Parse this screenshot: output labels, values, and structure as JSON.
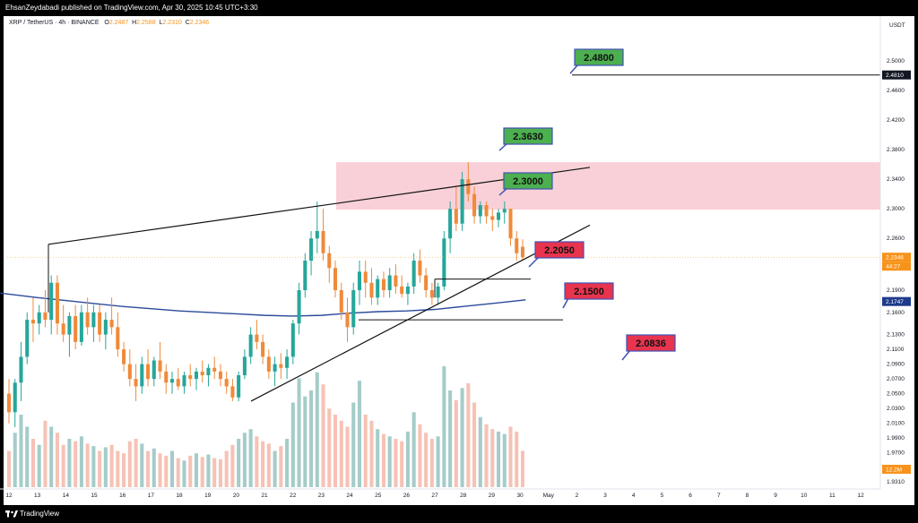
{
  "header": {
    "publisher_line": "EhsanZeydabadi published on TradingView.com, Apr 30, 2025 10:45 UTC+3:30"
  },
  "legend": {
    "symbol": "XRP / TetherUS · 4h · BINANCE",
    "open_label": "O",
    "open": "2.2487",
    "high_label": "H",
    "high": "2.2588",
    "low_label": "L",
    "low": "2.2310",
    "close_label": "C",
    "close": "2.2346"
  },
  "footer": {
    "brand": "TradingView"
  },
  "colors": {
    "up": "#26a69a",
    "down": "#ef8a3a",
    "volume_up": "#8fbfbc",
    "volume_down": "#f4b3a2",
    "ma": "#2a4a9a",
    "zone": "#f8c8d0",
    "callout_green": "#4caf50",
    "callout_red": "#e8344e",
    "callout_border": "#3f51b5"
  },
  "chart_data": {
    "type": "candlestick",
    "title": "",
    "xlabel": "",
    "ylabel": "",
    "unit": "USDT",
    "ylim": [
      1.931,
      2.53
    ],
    "y_ticks": [
      "2.5000",
      "2.4600",
      "2.4200",
      "2.3800",
      "2.3400",
      "2.3000",
      "2.2600",
      "2.1900",
      "2.1600",
      "2.1300",
      "2.1100",
      "2.0900",
      "2.0700",
      "2.0500",
      "2.0300",
      "2.0100",
      "1.9900",
      "1.9700",
      "1.9500",
      "1.9310"
    ],
    "x_ticks": [
      "12",
      "13",
      "14",
      "15",
      "16",
      "17",
      "18",
      "19",
      "20",
      "21",
      "22",
      "23",
      "24",
      "25",
      "26",
      "27",
      "28",
      "29",
      "30",
      "May",
      "2",
      "3",
      "4",
      "5",
      "6",
      "7",
      "8",
      "9",
      "10",
      "11",
      "12"
    ],
    "price_tags": {
      "level_line": "2.4810",
      "last_price": "2.2346",
      "countdown": "44:27",
      "ma_value": "2.1747",
      "volume": "12.2M"
    },
    "callouts": [
      {
        "label": "2.4800",
        "color": "green"
      },
      {
        "label": "2.3630",
        "color": "green"
      },
      {
        "label": "2.3000",
        "color": "green"
      },
      {
        "label": "2.2050",
        "color": "red"
      },
      {
        "label": "2.1500",
        "color": "red"
      },
      {
        "label": "2.0836",
        "color": "red"
      }
    ],
    "resistance_zone": [
      2.299,
      2.363
    ],
    "horizontal_lines": [
      2.481,
      2.205,
      2.15
    ],
    "trendlines": [
      {
        "name": "upper",
        "from": [
          "13",
          2.252
        ],
        "to": [
          "May 2",
          2.356
        ]
      },
      {
        "name": "lower",
        "from": [
          "20",
          2.04
        ],
        "to": [
          "May 2",
          2.278
        ]
      }
    ],
    "ma_series": [
      {
        "x": 11.7,
        "v": 2.186
      },
      {
        "x": 13,
        "v": 2.18
      },
      {
        "x": 14,
        "v": 2.176
      },
      {
        "x": 15,
        "v": 2.172
      },
      {
        "x": 16,
        "v": 2.168
      },
      {
        "x": 17,
        "v": 2.165
      },
      {
        "x": 18,
        "v": 2.162
      },
      {
        "x": 19,
        "v": 2.16
      },
      {
        "x": 20,
        "v": 2.158
      },
      {
        "x": 21,
        "v": 2.156
      },
      {
        "x": 22,
        "v": 2.155
      },
      {
        "x": 23,
        "v": 2.156
      },
      {
        "x": 24,
        "v": 2.159
      },
      {
        "x": 25,
        "v": 2.161
      },
      {
        "x": 26,
        "v": 2.162
      },
      {
        "x": 27,
        "v": 2.164
      },
      {
        "x": 28,
        "v": 2.168
      },
      {
        "x": 29,
        "v": 2.172
      },
      {
        "x": 30.2,
        "v": 2.177
      }
    ],
    "candles": [
      {
        "o": 2.05,
        "h": 2.07,
        "l": 2.01,
        "c": 2.025
      },
      {
        "o": 2.025,
        "h": 2.07,
        "l": 2.005,
        "c": 2.065
      },
      {
        "o": 2.065,
        "h": 2.12,
        "l": 2.04,
        "c": 2.1
      },
      {
        "o": 2.1,
        "h": 2.16,
        "l": 2.09,
        "c": 2.15
      },
      {
        "o": 2.15,
        "h": 2.18,
        "l": 2.12,
        "c": 2.145
      },
      {
        "o": 2.145,
        "h": 2.17,
        "l": 2.13,
        "c": 2.16
      },
      {
        "o": 2.16,
        "h": 2.19,
        "l": 2.14,
        "c": 2.15
      },
      {
        "o": 2.15,
        "h": 2.21,
        "l": 2.13,
        "c": 2.2
      },
      {
        "o": 2.2,
        "h": 2.21,
        "l": 2.13,
        "c": 2.145
      },
      {
        "o": 2.145,
        "h": 2.17,
        "l": 2.12,
        "c": 2.13
      },
      {
        "o": 2.13,
        "h": 2.16,
        "l": 2.1,
        "c": 2.155
      },
      {
        "o": 2.155,
        "h": 2.17,
        "l": 2.11,
        "c": 2.12
      },
      {
        "o": 2.12,
        "h": 2.17,
        "l": 2.115,
        "c": 2.16
      },
      {
        "o": 2.16,
        "h": 2.18,
        "l": 2.13,
        "c": 2.14
      },
      {
        "o": 2.14,
        "h": 2.17,
        "l": 2.12,
        "c": 2.16
      },
      {
        "o": 2.16,
        "h": 2.17,
        "l": 2.12,
        "c": 2.13
      },
      {
        "o": 2.13,
        "h": 2.16,
        "l": 2.11,
        "c": 2.15
      },
      {
        "o": 2.15,
        "h": 2.18,
        "l": 2.13,
        "c": 2.14
      },
      {
        "o": 2.14,
        "h": 2.16,
        "l": 2.1,
        "c": 2.11
      },
      {
        "o": 2.11,
        "h": 2.12,
        "l": 2.08,
        "c": 2.09
      },
      {
        "o": 2.09,
        "h": 2.11,
        "l": 2.06,
        "c": 2.07
      },
      {
        "o": 2.07,
        "h": 2.09,
        "l": 2.04,
        "c": 2.06
      },
      {
        "o": 2.06,
        "h": 2.1,
        "l": 2.05,
        "c": 2.09
      },
      {
        "o": 2.09,
        "h": 2.11,
        "l": 2.06,
        "c": 2.07
      },
      {
        "o": 2.07,
        "h": 2.1,
        "l": 2.06,
        "c": 2.095
      },
      {
        "o": 2.095,
        "h": 2.12,
        "l": 2.07,
        "c": 2.08
      },
      {
        "o": 2.08,
        "h": 2.09,
        "l": 2.05,
        "c": 2.065
      },
      {
        "o": 2.065,
        "h": 2.08,
        "l": 2.05,
        "c": 2.07
      },
      {
        "o": 2.07,
        "h": 2.085,
        "l": 2.055,
        "c": 2.06
      },
      {
        "o": 2.06,
        "h": 2.08,
        "l": 2.05,
        "c": 2.075
      },
      {
        "o": 2.075,
        "h": 2.09,
        "l": 2.06,
        "c": 2.07
      },
      {
        "o": 2.07,
        "h": 2.085,
        "l": 2.055,
        "c": 2.08
      },
      {
        "o": 2.08,
        "h": 2.095,
        "l": 2.065,
        "c": 2.075
      },
      {
        "o": 2.075,
        "h": 2.09,
        "l": 2.06,
        "c": 2.085
      },
      {
        "o": 2.085,
        "h": 2.1,
        "l": 2.07,
        "c": 2.08
      },
      {
        "o": 2.08,
        "h": 2.09,
        "l": 2.06,
        "c": 2.07
      },
      {
        "o": 2.07,
        "h": 2.08,
        "l": 2.05,
        "c": 2.06
      },
      {
        "o": 2.06,
        "h": 2.07,
        "l": 2.04,
        "c": 2.045
      },
      {
        "o": 2.045,
        "h": 2.08,
        "l": 2.04,
        "c": 2.075
      },
      {
        "o": 2.075,
        "h": 2.11,
        "l": 2.07,
        "c": 2.1
      },
      {
        "o": 2.1,
        "h": 2.14,
        "l": 2.09,
        "c": 2.13
      },
      {
        "o": 2.13,
        "h": 2.15,
        "l": 2.11,
        "c": 2.12
      },
      {
        "o": 2.12,
        "h": 2.13,
        "l": 2.09,
        "c": 2.1
      },
      {
        "o": 2.1,
        "h": 2.11,
        "l": 2.07,
        "c": 2.08
      },
      {
        "o": 2.08,
        "h": 2.1,
        "l": 2.06,
        "c": 2.09
      },
      {
        "o": 2.09,
        "h": 2.105,
        "l": 2.07,
        "c": 2.085
      },
      {
        "o": 2.085,
        "h": 2.11,
        "l": 2.07,
        "c": 2.1
      },
      {
        "o": 2.1,
        "h": 2.15,
        "l": 2.09,
        "c": 2.145
      },
      {
        "o": 2.145,
        "h": 2.2,
        "l": 2.13,
        "c": 2.19
      },
      {
        "o": 2.19,
        "h": 2.24,
        "l": 2.18,
        "c": 2.23
      },
      {
        "o": 2.23,
        "h": 2.27,
        "l": 2.21,
        "c": 2.26
      },
      {
        "o": 2.26,
        "h": 2.31,
        "l": 2.24,
        "c": 2.27
      },
      {
        "o": 2.27,
        "h": 2.3,
        "l": 2.23,
        "c": 2.24
      },
      {
        "o": 2.24,
        "h": 2.25,
        "l": 2.2,
        "c": 2.22
      },
      {
        "o": 2.22,
        "h": 2.23,
        "l": 2.18,
        "c": 2.19
      },
      {
        "o": 2.19,
        "h": 2.2,
        "l": 2.15,
        "c": 2.16
      },
      {
        "o": 2.16,
        "h": 2.18,
        "l": 2.12,
        "c": 2.14
      },
      {
        "o": 2.14,
        "h": 2.2,
        "l": 2.13,
        "c": 2.19
      },
      {
        "o": 2.19,
        "h": 2.23,
        "l": 2.17,
        "c": 2.215
      },
      {
        "o": 2.215,
        "h": 2.23,
        "l": 2.18,
        "c": 2.2
      },
      {
        "o": 2.2,
        "h": 2.22,
        "l": 2.17,
        "c": 2.18
      },
      {
        "o": 2.18,
        "h": 2.21,
        "l": 2.17,
        "c": 2.205
      },
      {
        "o": 2.205,
        "h": 2.215,
        "l": 2.18,
        "c": 2.19
      },
      {
        "o": 2.19,
        "h": 2.22,
        "l": 2.18,
        "c": 2.21
      },
      {
        "o": 2.21,
        "h": 2.225,
        "l": 2.185,
        "c": 2.195
      },
      {
        "o": 2.195,
        "h": 2.21,
        "l": 2.18,
        "c": 2.185
      },
      {
        "o": 2.185,
        "h": 2.2,
        "l": 2.17,
        "c": 2.195
      },
      {
        "o": 2.195,
        "h": 2.24,
        "l": 2.185,
        "c": 2.23
      },
      {
        "o": 2.23,
        "h": 2.245,
        "l": 2.2,
        "c": 2.21
      },
      {
        "o": 2.21,
        "h": 2.22,
        "l": 2.18,
        "c": 2.19
      },
      {
        "o": 2.19,
        "h": 2.2,
        "l": 2.17,
        "c": 2.18
      },
      {
        "o": 2.18,
        "h": 2.2,
        "l": 2.17,
        "c": 2.195
      },
      {
        "o": 2.195,
        "h": 2.27,
        "l": 2.19,
        "c": 2.26
      },
      {
        "o": 2.26,
        "h": 2.31,
        "l": 2.24,
        "c": 2.3
      },
      {
        "o": 2.3,
        "h": 2.33,
        "l": 2.27,
        "c": 2.28
      },
      {
        "o": 2.28,
        "h": 2.35,
        "l": 2.27,
        "c": 2.34
      },
      {
        "o": 2.34,
        "h": 2.363,
        "l": 2.31,
        "c": 2.32
      },
      {
        "o": 2.32,
        "h": 2.33,
        "l": 2.28,
        "c": 2.29
      },
      {
        "o": 2.29,
        "h": 2.31,
        "l": 2.28,
        "c": 2.305
      },
      {
        "o": 2.305,
        "h": 2.31,
        "l": 2.28,
        "c": 2.29
      },
      {
        "o": 2.29,
        "h": 2.3,
        "l": 2.27,
        "c": 2.285
      },
      {
        "o": 2.285,
        "h": 2.3,
        "l": 2.275,
        "c": 2.295
      },
      {
        "o": 2.295,
        "h": 2.31,
        "l": 2.28,
        "c": 2.3
      },
      {
        "o": 2.3,
        "h": 2.3,
        "l": 2.25,
        "c": 2.26
      },
      {
        "o": 2.26,
        "h": 2.27,
        "l": 2.23,
        "c": 2.24
      },
      {
        "o": 2.2487,
        "h": 2.2588,
        "l": 2.231,
        "c": 2.2346
      }
    ],
    "volumes": [
      0.3,
      0.45,
      0.6,
      0.5,
      0.4,
      0.35,
      0.55,
      0.5,
      0.45,
      0.35,
      0.4,
      0.38,
      0.42,
      0.36,
      0.34,
      0.3,
      0.33,
      0.35,
      0.3,
      0.28,
      0.38,
      0.4,
      0.36,
      0.3,
      0.32,
      0.28,
      0.26,
      0.3,
      0.24,
      0.22,
      0.26,
      0.28,
      0.25,
      0.27,
      0.24,
      0.23,
      0.3,
      0.35,
      0.4,
      0.45,
      0.48,
      0.42,
      0.38,
      0.36,
      0.3,
      0.34,
      0.4,
      0.7,
      0.9,
      0.75,
      0.8,
      0.95,
      0.85,
      0.65,
      0.6,
      0.55,
      0.5,
      0.7,
      0.88,
      0.6,
      0.55,
      0.48,
      0.44,
      0.42,
      0.4,
      0.38,
      0.46,
      0.62,
      0.52,
      0.45,
      0.4,
      0.42,
      1.0,
      0.8,
      0.72,
      0.82,
      0.86,
      0.7,
      0.58,
      0.52,
      0.48,
      0.46,
      0.44,
      0.5,
      0.46,
      0.3
    ]
  }
}
